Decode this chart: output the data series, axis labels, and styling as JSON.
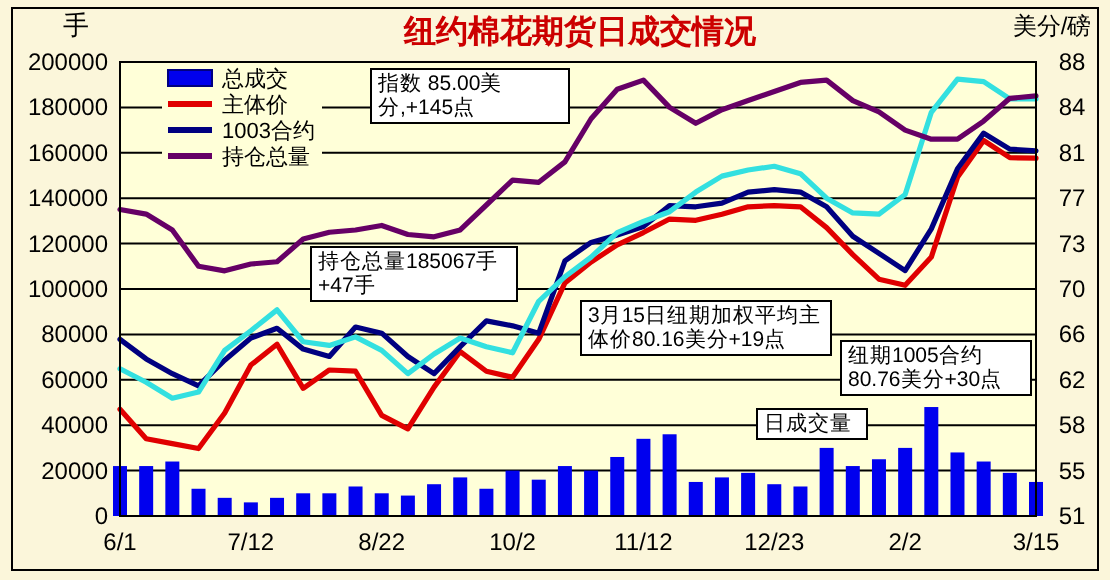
{
  "chart_data": {
    "type": "line",
    "title": "纽约棉花期货日成交情况",
    "ylabel": "手",
    "y2label": "美分/磅",
    "categories": [
      "6/1",
      null,
      null,
      null,
      null,
      "7/12",
      null,
      null,
      null,
      null,
      "8/22",
      null,
      null,
      null,
      null,
      "10/2",
      null,
      null,
      null,
      null,
      "11/12",
      null,
      null,
      null,
      null,
      "12/23",
      null,
      null,
      null,
      null,
      "2/2",
      null,
      null,
      null,
      null,
      "3/15"
    ],
    "ylim": [
      0,
      200000
    ],
    "yticks": [
      0,
      20000,
      40000,
      60000,
      80000,
      100000,
      120000,
      140000,
      160000,
      180000,
      200000
    ],
    "y2lim": [
      51,
      88
    ],
    "y2ticks": [
      51,
      {
        "value": 54.7,
        "label": "55"
      },
      {
        "value": 58.4,
        "label": "58"
      },
      {
        "value": 62.1,
        "label": "62"
      },
      {
        "value": 65.8,
        "label": "66"
      },
      {
        "value": 69.5,
        "label": "70"
      },
      {
        "value": 73.2,
        "label": "73"
      },
      {
        "value": 76.9,
        "label": "77"
      },
      {
        "value": 80.6,
        "label": "81"
      },
      {
        "value": 84.3,
        "label": "84"
      },
      88
    ],
    "grid": "y",
    "legend": "top left",
    "series": [
      {
        "name": "总成交",
        "type": "bar",
        "color": "#0000ee",
        "values": [
          22000,
          22000,
          24000,
          12000,
          8000,
          6000,
          8000,
          10000,
          10000,
          13000,
          10000,
          9000,
          14000,
          17000,
          12000,
          20000,
          16000,
          22000,
          20000,
          26000,
          34000,
          36000,
          15000,
          17000,
          19000,
          14000,
          13000,
          30000,
          22000,
          25000,
          30000,
          48000,
          28000,
          24000,
          19000,
          15000
        ]
      },
      {
        "name": "主体价",
        "axis": "y2",
        "color": "#e00000",
        "values": [
          59.7,
          57.3,
          56.9,
          56.5,
          59.4,
          63.3,
          65.0,
          61.4,
          62.9,
          62.8,
          59.2,
          58.1,
          61.5,
          64.4,
          62.8,
          62.3,
          65.4,
          70.0,
          71.7,
          73.1,
          74.1,
          75.2,
          75.1,
          75.6,
          76.2,
          76.3,
          76.2,
          74.5,
          72.3,
          70.3,
          69.8,
          72.1,
          78.6,
          81.6,
          80.2,
          80.16
        ]
      },
      {
        "name": "1003合约",
        "axis": "y2",
        "color": "#000080",
        "values": [
          65.4,
          63.8,
          62.6,
          61.6,
          63.7,
          65.5,
          66.3,
          64.6,
          64.0,
          66.4,
          65.9,
          64.0,
          62.6,
          64.8,
          66.9,
          66.5,
          65.9,
          71.8,
          73.3,
          73.9,
          74.6,
          76.3,
          76.2,
          76.5,
          77.4,
          77.6,
          77.4,
          76.2,
          73.8,
          72.4,
          71.0,
          74.4,
          79.3,
          82.2,
          80.9,
          80.76
        ]
      },
      {
        "axis": "y2",
        "color": "#33e0e0",
        "values": [
          63.0,
          61.9,
          60.6,
          61.1,
          64.5,
          66.1,
          67.8,
          65.2,
          64.9,
          65.6,
          64.5,
          62.6,
          64.2,
          65.5,
          64.8,
          64.3,
          68.5,
          70.5,
          72.1,
          74.1,
          75.0,
          75.8,
          77.4,
          78.7,
          79.2,
          79.5,
          78.9,
          76.9,
          75.7,
          75.6,
          77.2,
          83.9,
          86.6,
          86.4,
          85.0,
          85.0
        ]
      },
      {
        "name": "持仓总量",
        "color": "#660066",
        "values": [
          135000,
          133000,
          126000,
          110000,
          108000,
          111000,
          112000,
          122000,
          125000,
          126000,
          128000,
          124000,
          123000,
          126000,
          137000,
          148000,
          147000,
          156000,
          175000,
          188000,
          192000,
          180000,
          173000,
          179000,
          183000,
          187000,
          191000,
          192000,
          183000,
          178000,
          170000,
          166000,
          166000,
          174000,
          184000,
          185067
        ]
      }
    ],
    "annotations": [
      "指数 85.00美分,+145点",
      "3月15日纽期加权平均主体价80.16美分+19点",
      "持仓总量185067手+47手",
      "纽期1005合约80.76美分+30点",
      "日成交量"
    ]
  }
}
